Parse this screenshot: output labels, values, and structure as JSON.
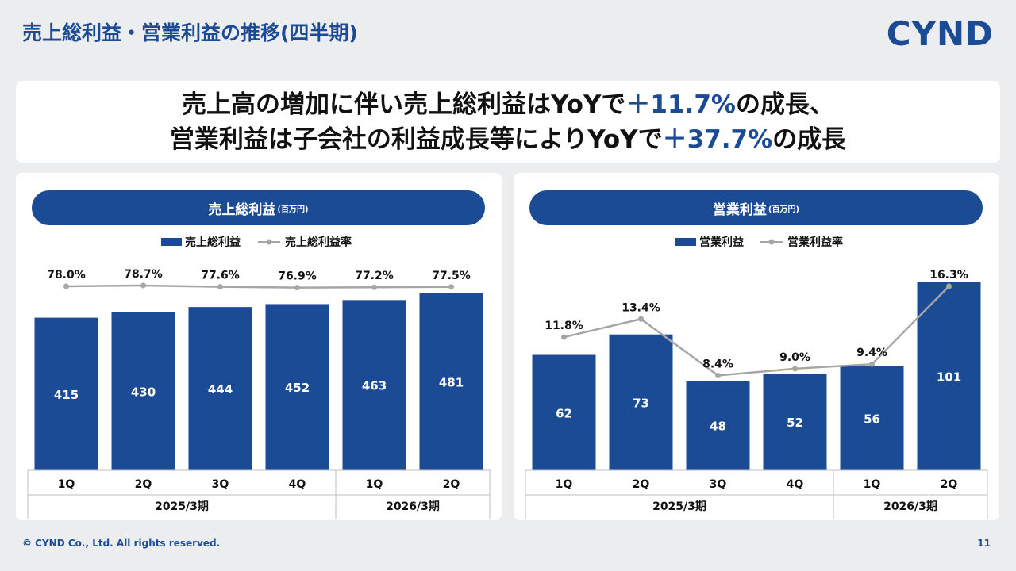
{
  "header": {
    "title": "売上総利益・営業利益の推移(四半期)",
    "logo": "CYND"
  },
  "message": {
    "line1_pre": "売上高の増加に伴い売上総利益はYoYで",
    "line1_hl": "＋11.7%",
    "line1_post": "の成長、",
    "line2_pre": "営業利益は子会社の利益成長等によりYoYで",
    "line2_hl": "＋37.7%",
    "line2_post": "の成長"
  },
  "colors": {
    "bar": "#1b4b95",
    "line": "#a6a6a6",
    "text": "#111111"
  },
  "chart_data": [
    {
      "type": "bar",
      "title": "売上総利益",
      "unit": "(百万円)",
      "legend_bar": "売上総利益",
      "legend_line": "売上総利益率",
      "categories": [
        "1Q",
        "2Q",
        "3Q",
        "4Q",
        "1Q",
        "2Q"
      ],
      "groups": [
        {
          "label": "2025/3期",
          "count": 4
        },
        {
          "label": "2026/3期",
          "count": 2
        }
      ],
      "values": [
        415,
        430,
        444,
        452,
        463,
        481
      ],
      "value_labels": [
        "415",
        "430",
        "444",
        "452",
        "463",
        "481"
      ],
      "rate_values": [
        78.0,
        78.7,
        77.6,
        76.9,
        77.2,
        77.5
      ],
      "rate_labels": [
        "78.0%",
        "78.7%",
        "77.6%",
        "76.9%",
        "77.2%",
        "77.5%"
      ],
      "ylim": [
        0,
        550
      ],
      "rate_lim": [
        50,
        90
      ]
    },
    {
      "type": "bar",
      "title": "営業利益",
      "unit": "(百万円)",
      "legend_bar": "営業利益",
      "legend_line": "営業利益率",
      "categories": [
        "1Q",
        "2Q",
        "3Q",
        "4Q",
        "1Q",
        "2Q"
      ],
      "groups": [
        {
          "label": "2025/3期",
          "count": 4
        },
        {
          "label": "2026/3期",
          "count": 2
        }
      ],
      "values": [
        62,
        73,
        48,
        52,
        56,
        101
      ],
      "value_labels": [
        "62",
        "73",
        "48",
        "52",
        "56",
        "101"
      ],
      "rate_values": [
        11.8,
        13.4,
        8.4,
        9.0,
        9.4,
        16.3
      ],
      "rate_labels": [
        "11.8%",
        "13.4%",
        "8.4%",
        "9.0%",
        "9.4%",
        "16.3%"
      ],
      "ylim": [
        0,
        101
      ],
      "rate_lim": [
        0,
        16.3
      ]
    }
  ],
  "footer": {
    "copyright": "© CYND Co., Ltd. All rights reserved.",
    "page": "11"
  }
}
